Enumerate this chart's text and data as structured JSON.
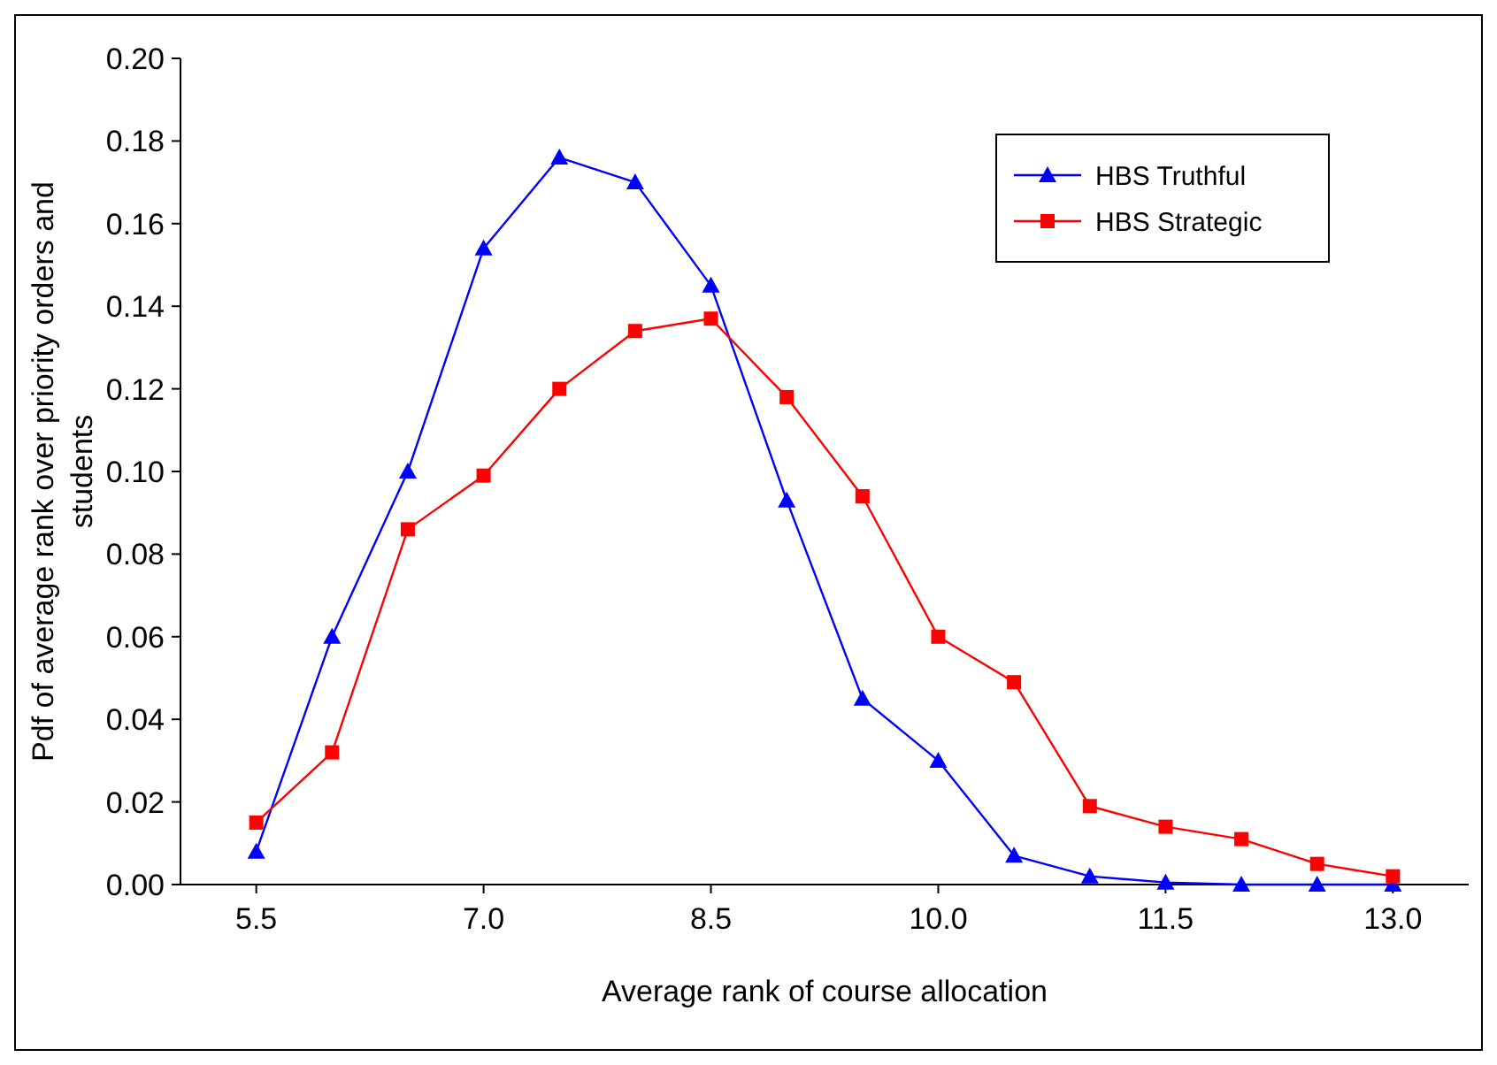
{
  "chart_data": {
    "type": "line",
    "xlabel": "Average rank of course allocation",
    "ylabel": "Pdf of average rank over priority orders and students",
    "x": [
      5.5,
      6.0,
      6.5,
      7.0,
      7.5,
      8.0,
      8.5,
      9.0,
      9.5,
      10.0,
      10.5,
      11.0,
      11.5,
      12.0,
      12.5,
      13.0
    ],
    "series": [
      {
        "name": "HBS Truthful",
        "color": "#0000ff",
        "marker": "triangle",
        "values": [
          0.008,
          0.06,
          0.1,
          0.154,
          0.176,
          0.17,
          0.145,
          0.093,
          0.045,
          0.03,
          0.007,
          0.002,
          0.0005,
          0,
          0,
          0
        ]
      },
      {
        "name": "HBS Strategic",
        "color": "#ff0000",
        "marker": "square",
        "values": [
          0.015,
          0.032,
          0.086,
          0.099,
          0.12,
          0.134,
          0.137,
          0.118,
          0.094,
          0.06,
          0.049,
          0.019,
          0.014,
          0.011,
          0.005,
          0.002
        ]
      }
    ],
    "xlim": [
      5.0,
      13.5
    ],
    "xticks": [
      {
        "value": 5.5,
        "label": "5.5"
      },
      {
        "value": 7.0,
        "label": "7.0"
      },
      {
        "value": 8.5,
        "label": "8.5"
      },
      {
        "value": 10.0,
        "label": "10.0"
      },
      {
        "value": 11.5,
        "label": "11.5"
      },
      {
        "value": 13.0,
        "label": "13.0"
      }
    ],
    "ylim": [
      0,
      0.2
    ],
    "yticks": [
      {
        "value": 0,
        "label": "0.00"
      },
      {
        "value": 0.02,
        "label": "0.02"
      },
      {
        "value": 0.04,
        "label": "0.04"
      },
      {
        "value": 0.06,
        "label": "0.06"
      },
      {
        "value": 0.08,
        "label": "0.08"
      },
      {
        "value": 0.1,
        "label": "0.10"
      },
      {
        "value": 0.12,
        "label": "0.12"
      },
      {
        "value": 0.14,
        "label": "0.14"
      },
      {
        "value": 0.16,
        "label": "0.16"
      },
      {
        "value": 0.18,
        "label": "0.18"
      },
      {
        "value": 0.2,
        "label": "0.20"
      }
    ],
    "grid": false,
    "legend": "top right",
    "line_style": "solid"
  }
}
